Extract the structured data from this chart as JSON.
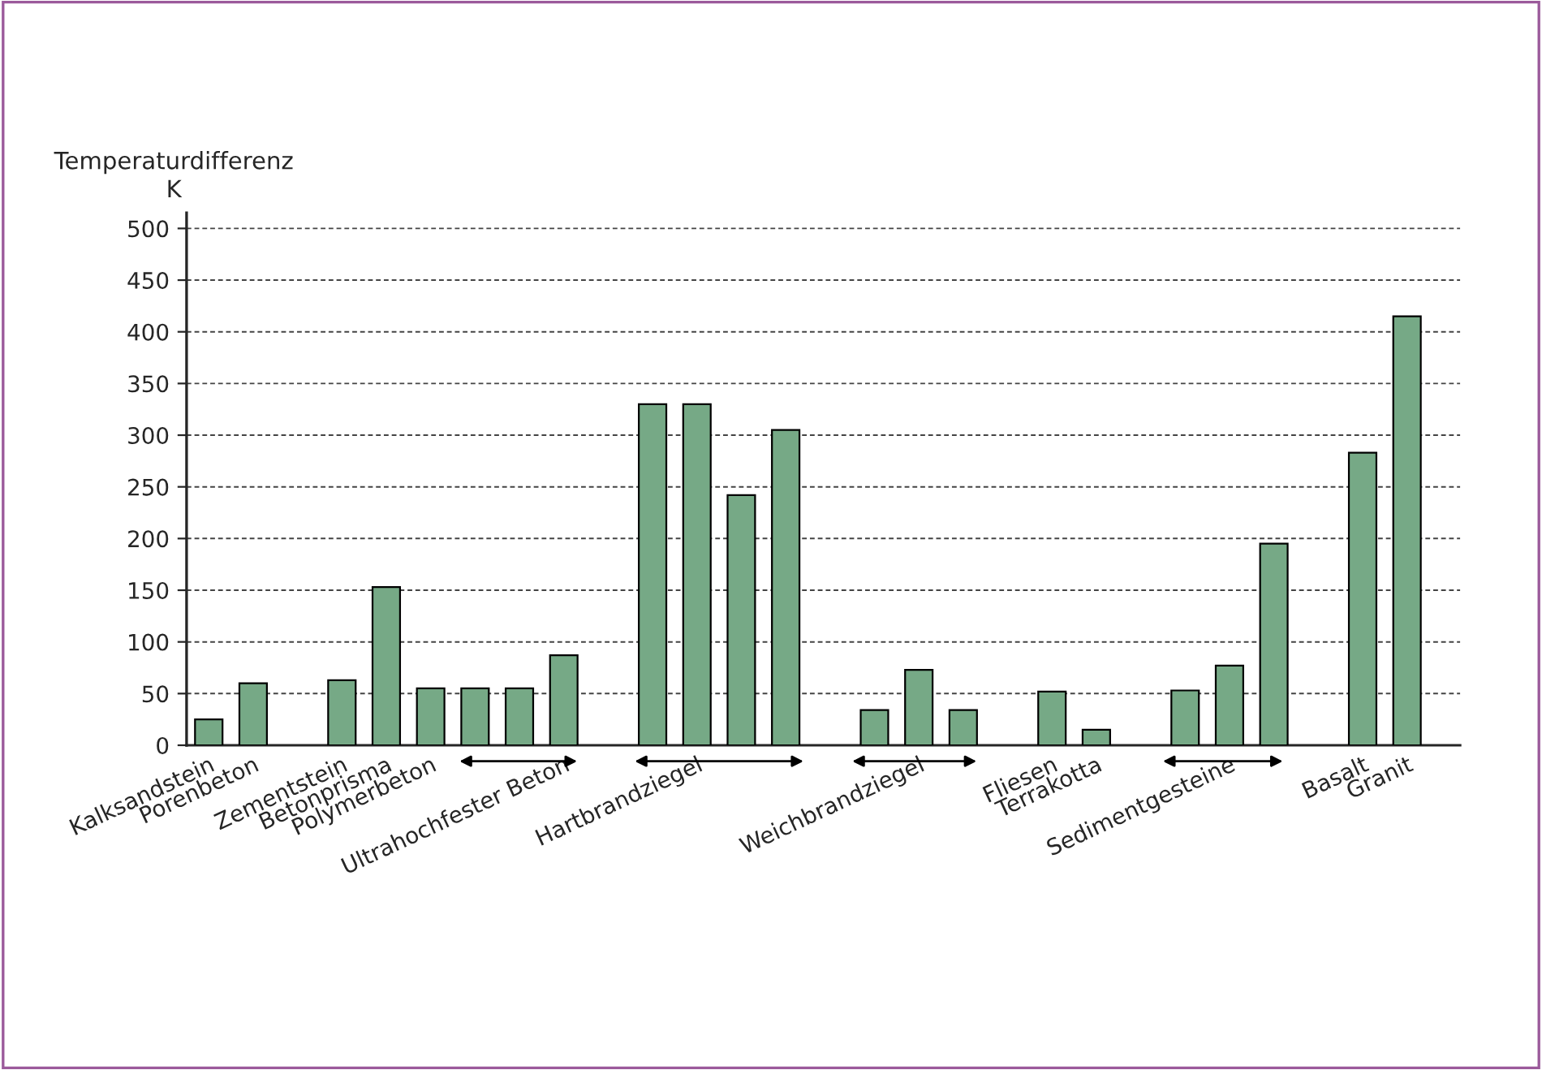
{
  "chart_data": {
    "type": "bar",
    "ylabel": "Temperaturdifferenz\nK",
    "categories": [
      "Kalksandstein",
      "Porenbeton",
      null,
      "Zementstein",
      "Betonprisma",
      "Polymerbeton",
      null,
      null,
      "Ultrahochfester Beton",
      null,
      null,
      "Hartbrandziegel",
      null,
      null,
      null,
      null,
      "Weichbrandziegel",
      null,
      null,
      "Fliesen",
      "Terrakotta",
      null,
      null,
      "Sedimentgesteine",
      null,
      null,
      "Basalt",
      "Granit"
    ],
    "values": [
      25,
      60,
      null,
      63,
      153,
      55,
      55,
      55,
      87,
      null,
      330,
      330,
      242,
      305,
      null,
      34,
      73,
      34,
      null,
      52,
      15,
      null,
      53,
      77,
      195,
      null,
      283,
      415
    ],
    "color": "#76a986",
    "ylim": [
      0,
      515
    ],
    "yticks": [
      0,
      50,
      100,
      150,
      200,
      250,
      300,
      350,
      400,
      450,
      500
    ],
    "grid": "y",
    "legend": false
  }
}
